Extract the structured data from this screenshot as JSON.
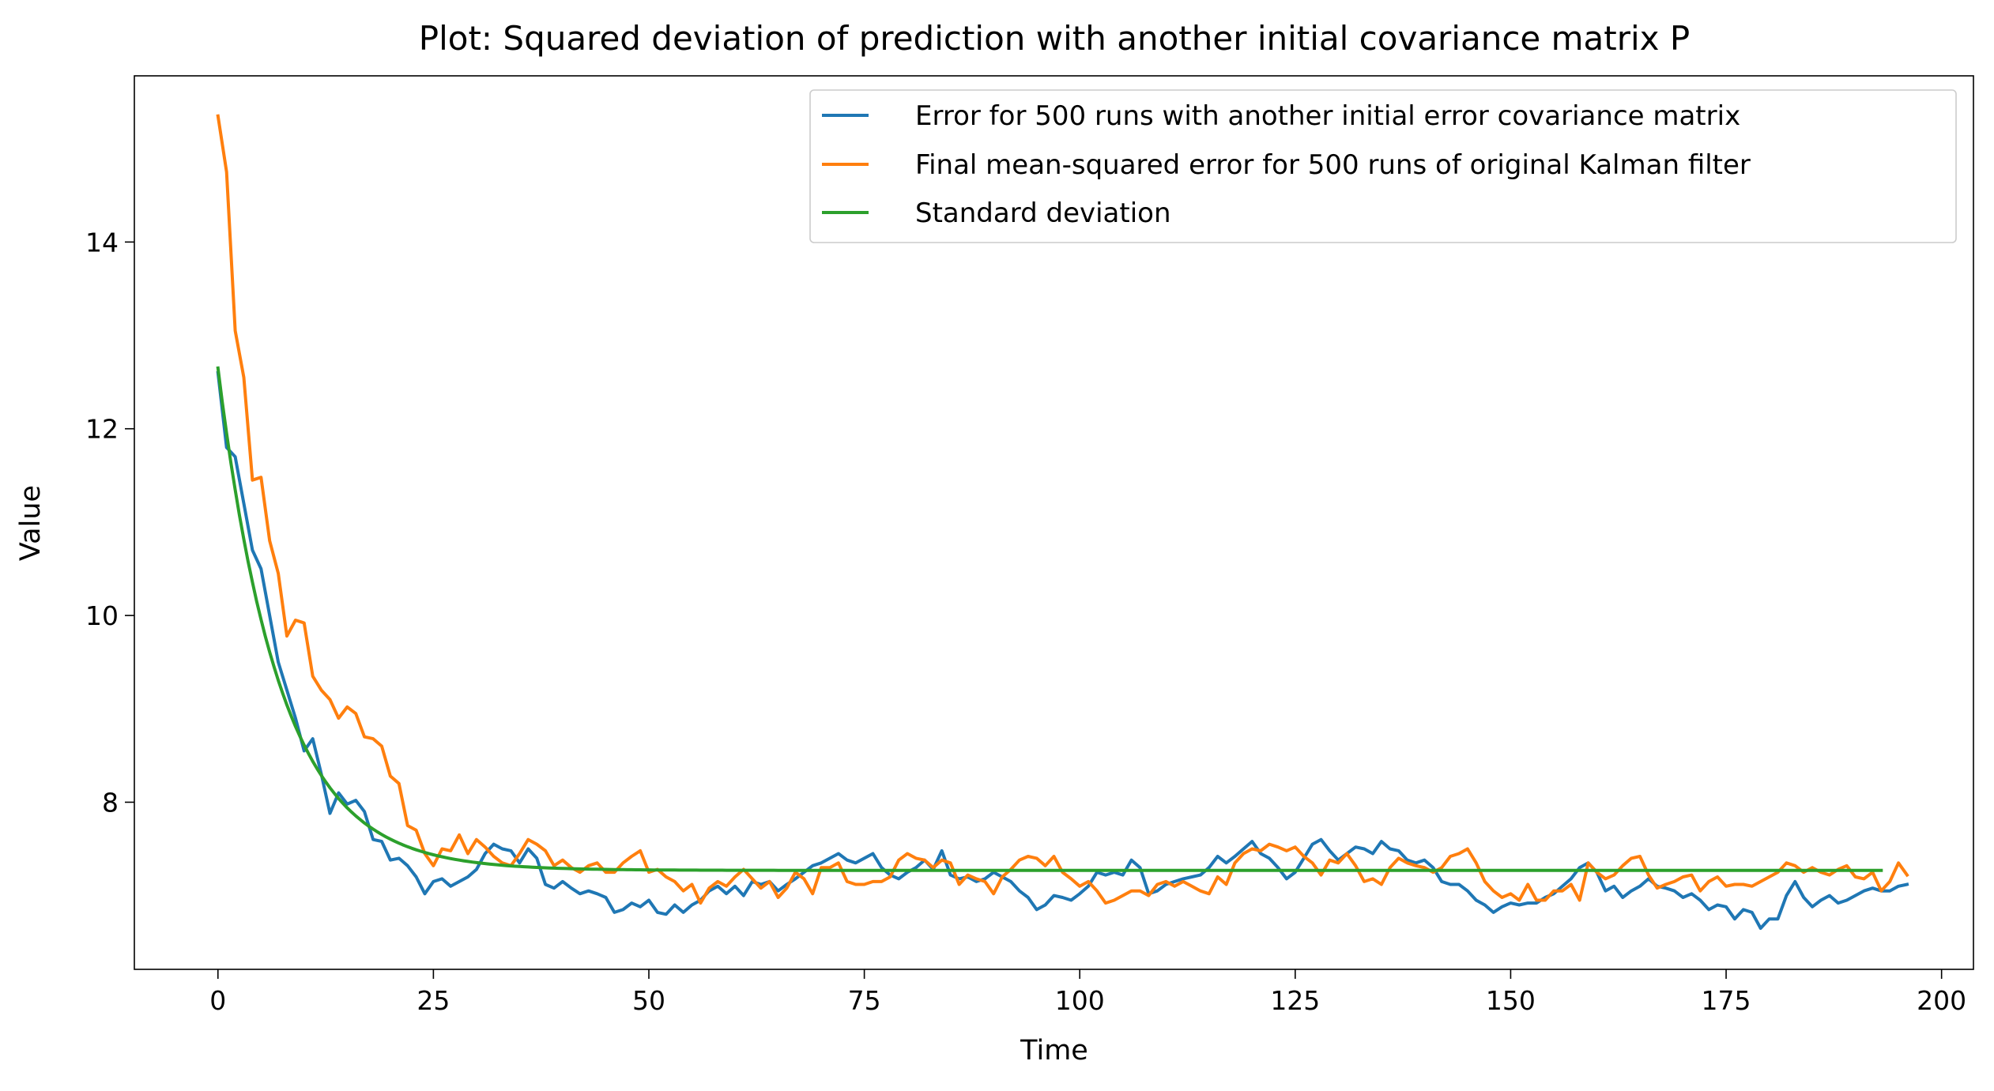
{
  "chart_data": {
    "type": "line",
    "title": "Plot: Squared deviation of prediction with another initial covariance matrix P",
    "xlabel": "Time",
    "ylabel": "Value",
    "xlim": [
      -9.7,
      203.7
    ],
    "ylim": [
      6.21,
      15.78
    ],
    "xticks": [
      "0",
      "25",
      "50",
      "75",
      "100",
      "125",
      "150",
      "175",
      "200"
    ],
    "yticks": [
      "8",
      "10",
      "12",
      "14"
    ],
    "grid": false,
    "legend_position": "upper right",
    "series": [
      {
        "name": "Error for 500 runs with another initial error covariance matrix",
        "color": "#1f77b4",
        "x_start": 0,
        "x_step": 1,
        "values": [
          12.6,
          11.8,
          11.7,
          11.2,
          10.7,
          10.5,
          10.0,
          9.5,
          9.2,
          8.9,
          8.55,
          8.68,
          8.3,
          7.88,
          8.1,
          7.98,
          8.02,
          7.9,
          7.6,
          7.58,
          7.38,
          7.4,
          7.32,
          7.2,
          7.02,
          7.15,
          7.18,
          7.1,
          7.15,
          7.2,
          7.28,
          7.45,
          7.55,
          7.5,
          7.48,
          7.35,
          7.5,
          7.4,
          7.12,
          7.08,
          7.15,
          7.08,
          7.02,
          7.05,
          7.02,
          6.98,
          6.82,
          6.85,
          6.92,
          6.88,
          6.95,
          6.82,
          6.8,
          6.9,
          6.82,
          6.9,
          6.95,
          7.05,
          7.1,
          7.02,
          7.1,
          7.0,
          7.15,
          7.12,
          7.15,
          7.05,
          7.12,
          7.18,
          7.25,
          7.32,
          7.35,
          7.4,
          7.45,
          7.38,
          7.35,
          7.4,
          7.45,
          7.3,
          7.22,
          7.18,
          7.25,
          7.3,
          7.38,
          7.28,
          7.48,
          7.22,
          7.18,
          7.2,
          7.15,
          7.18,
          7.25,
          7.2,
          7.15,
          7.05,
          6.98,
          6.85,
          6.9,
          7.0,
          6.98,
          6.95,
          7.02,
          7.1,
          7.25,
          7.22,
          7.25,
          7.22,
          7.38,
          7.3,
          7.02,
          7.05,
          7.12,
          7.15,
          7.18,
          7.2,
          7.22,
          7.3,
          7.42,
          7.35,
          7.42,
          7.5,
          7.58,
          7.45,
          7.4,
          7.3,
          7.18,
          7.25,
          7.4,
          7.55,
          7.6,
          7.48,
          7.38,
          7.45,
          7.52,
          7.5,
          7.45,
          7.58,
          7.5,
          7.48,
          7.38,
          7.35,
          7.38,
          7.3,
          7.15,
          7.12,
          7.12,
          7.05,
          6.95,
          6.9,
          6.82,
          6.88,
          6.92,
          6.9,
          6.92,
          6.92,
          6.98,
          7.02,
          7.1,
          7.18,
          7.3,
          7.35,
          7.25,
          7.05,
          7.1,
          6.98,
          7.05,
          7.1,
          7.18,
          7.1,
          7.08,
          7.05,
          6.98,
          7.02,
          6.95,
          6.85,
          6.9,
          6.88,
          6.75,
          6.85,
          6.82,
          6.65,
          6.75,
          6.75,
          7.0,
          7.15,
          6.98,
          6.88,
          6.95,
          7.0,
          6.92,
          6.95,
          7.0,
          7.05,
          7.08,
          7.05,
          7.05,
          7.1,
          7.12
        ]
      },
      {
        "name": "Final mean-squared error for 500 runs of original Kalman filter",
        "color": "#ff7f0e",
        "x_start": 0,
        "x_step": 1,
        "values": [
          15.35,
          14.75,
          13.05,
          12.55,
          11.45,
          11.48,
          10.8,
          10.45,
          9.78,
          9.95,
          9.92,
          9.35,
          9.2,
          9.1,
          8.9,
          9.02,
          8.95,
          8.7,
          8.68,
          8.6,
          8.28,
          8.2,
          7.75,
          7.7,
          7.45,
          7.32,
          7.5,
          7.48,
          7.65,
          7.45,
          7.6,
          7.52,
          7.42,
          7.35,
          7.32,
          7.45,
          7.6,
          7.55,
          7.48,
          7.32,
          7.38,
          7.3,
          7.25,
          7.32,
          7.35,
          7.25,
          7.25,
          7.35,
          7.42,
          7.48,
          7.25,
          7.28,
          7.2,
          7.15,
          7.05,
          7.12,
          6.92,
          7.08,
          7.15,
          7.1,
          7.2,
          7.28,
          7.18,
          7.08,
          7.15,
          6.98,
          7.08,
          7.25,
          7.18,
          7.02,
          7.3,
          7.3,
          7.35,
          7.15,
          7.12,
          7.12,
          7.15,
          7.15,
          7.2,
          7.38,
          7.45,
          7.4,
          7.38,
          7.3,
          7.38,
          7.35,
          7.12,
          7.22,
          7.18,
          7.15,
          7.02,
          7.2,
          7.28,
          7.38,
          7.42,
          7.4,
          7.32,
          7.42,
          7.25,
          7.18,
          7.1,
          7.15,
          7.05,
          6.92,
          6.95,
          7.0,
          7.05,
          7.05,
          7.0,
          7.12,
          7.15,
          7.1,
          7.15,
          7.1,
          7.05,
          7.02,
          7.2,
          7.12,
          7.35,
          7.45,
          7.5,
          7.48,
          7.55,
          7.52,
          7.48,
          7.52,
          7.42,
          7.35,
          7.22,
          7.38,
          7.35,
          7.45,
          7.32,
          7.15,
          7.18,
          7.12,
          7.3,
          7.4,
          7.35,
          7.32,
          7.3,
          7.25,
          7.3,
          7.42,
          7.45,
          7.5,
          7.35,
          7.15,
          7.05,
          6.98,
          7.02,
          6.95,
          7.12,
          6.95,
          6.95,
          7.05,
          7.05,
          7.12,
          6.95,
          7.35,
          7.25,
          7.18,
          7.22,
          7.32,
          7.4,
          7.42,
          7.22,
          7.08,
          7.12,
          7.15,
          7.2,
          7.22,
          7.05,
          7.15,
          7.2,
          7.1,
          7.12,
          7.12,
          7.1,
          7.15,
          7.2,
          7.25,
          7.35,
          7.32,
          7.25,
          7.3,
          7.25,
          7.22,
          7.28,
          7.32,
          7.2,
          7.18,
          7.25,
          7.05,
          7.15,
          7.35,
          7.22
        ]
      },
      {
        "name": "Standard deviation",
        "color": "#2ca02c",
        "function": "7.27 + 5.38 * exp(-x / 7.2)",
        "x_start": 0,
        "x_end": 193
      }
    ]
  }
}
